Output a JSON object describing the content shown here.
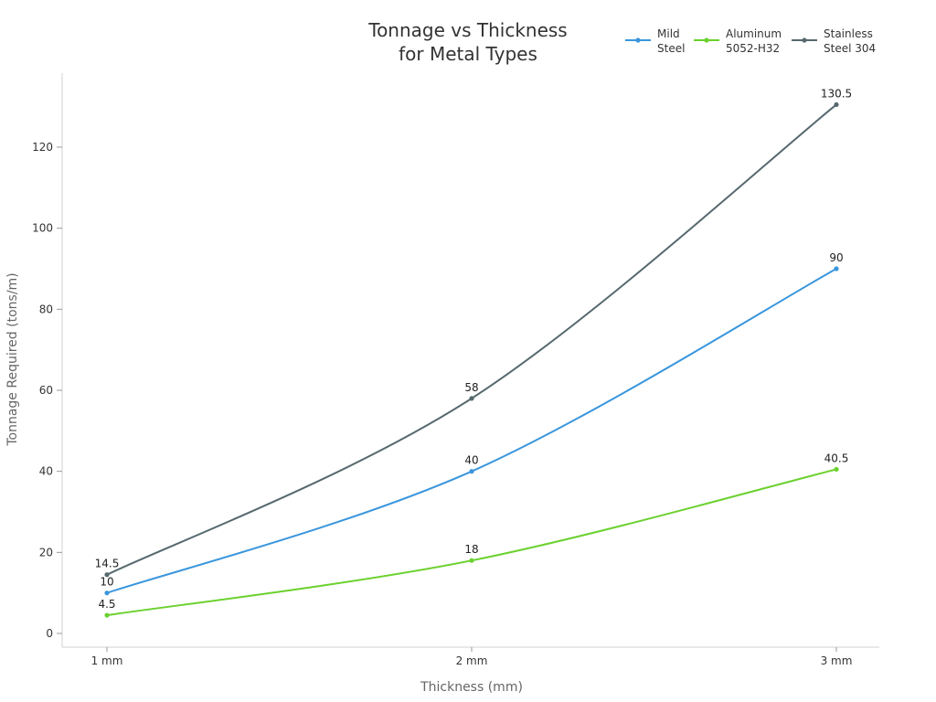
{
  "chart_data": {
    "type": "line",
    "title": "Tonnage vs Thickness for Metal Types",
    "title_lines": [
      "Tonnage vs Thickness",
      "for Metal Types"
    ],
    "xlabel": "Thickness (mm)",
    "ylabel": "Tonnage Required (tons/m)",
    "categories": [
      "1 mm",
      "2 mm",
      "3 mm"
    ],
    "yticks": [
      0,
      20,
      40,
      60,
      80,
      100,
      120
    ],
    "ylim": [
      -3.5,
      138
    ],
    "grid": false,
    "legend_position": "top-right",
    "series": [
      {
        "name": "Mild Steel",
        "legend_lines": [
          "Mild",
          "Steel"
        ],
        "color": "#3a96dd",
        "values": [
          10,
          40,
          90
        ],
        "labels": [
          "10",
          "40",
          "90"
        ]
      },
      {
        "name": "Aluminum 5052-H32",
        "legend_lines": [
          "Aluminum",
          "5052-H32"
        ],
        "color": "#6bd12e",
        "values": [
          4.5,
          18,
          40.5
        ],
        "labels": [
          "4.5",
          "18",
          "40.5"
        ]
      },
      {
        "name": "Stainless Steel 304",
        "legend_lines": [
          "Stainless",
          "Steel 304"
        ],
        "color": "#56696e",
        "values": [
          14.5,
          58,
          130.5
        ],
        "labels": [
          "14.5",
          "58",
          "130.5"
        ]
      }
    ]
  }
}
